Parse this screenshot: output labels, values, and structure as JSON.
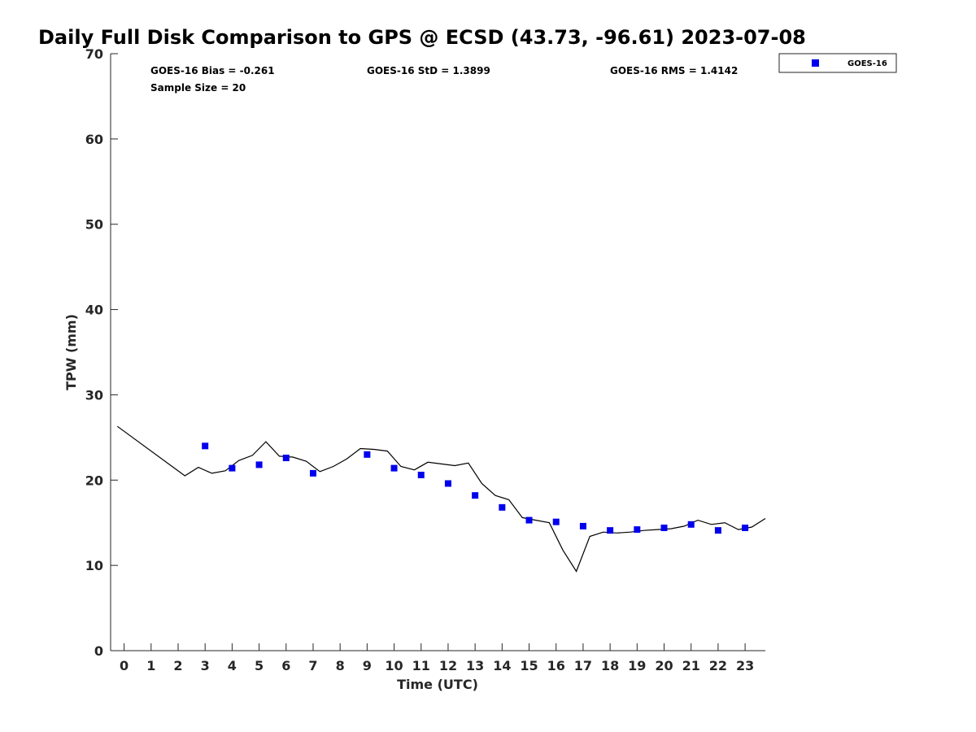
{
  "chart_data": {
    "type": "scatter",
    "title": "Daily Full Disk Comparison to GPS @ ECSD (43.73, -96.61) 2023-07-08",
    "xlabel": "Time (UTC)",
    "ylabel": "TPW (mm)",
    "xlim": [
      -0.5,
      23.75
    ],
    "ylim": [
      0,
      70
    ],
    "x_ticks": [
      0,
      1,
      2,
      3,
      4,
      5,
      6,
      7,
      8,
      9,
      10,
      11,
      12,
      13,
      14,
      15,
      16,
      17,
      18,
      19,
      20,
      21,
      22,
      23
    ],
    "y_ticks": [
      0,
      10,
      20,
      30,
      40,
      50,
      60,
      70
    ],
    "grid": false,
    "legend_position": "outside-top-right",
    "stats": {
      "bias": "GOES-16 Bias = -0.261",
      "std": "GOES-16 StD = 1.3899",
      "rms": "GOES-16 RMS = 1.4142",
      "sample_size": "Sample Size = 20"
    },
    "series": [
      {
        "name": "GOES-16",
        "kind": "scatter",
        "marker": "square",
        "color": "#0000ee",
        "x": [
          3,
          4,
          5,
          6,
          7,
          9,
          10,
          11,
          12,
          13,
          14,
          15,
          16,
          17,
          18,
          19,
          20,
          21,
          22,
          23
        ],
        "y": [
          24.0,
          21.4,
          21.8,
          22.6,
          20.8,
          23.0,
          21.4,
          20.6,
          19.6,
          18.2,
          16.8,
          15.3,
          15.1,
          14.6,
          14.1,
          14.2,
          14.4,
          14.8,
          14.1,
          14.4
        ]
      },
      {
        "kind": "line",
        "color": "#000000",
        "x": [
          -0.25,
          2.25,
          2.75,
          3.25,
          3.75,
          4.25,
          4.75,
          5.25,
          5.75,
          6.25,
          6.75,
          7.25,
          7.75,
          8.25,
          8.75,
          9.25,
          9.75,
          10.25,
          10.75,
          11.25,
          11.75,
          12.25,
          12.75,
          13.25,
          13.75,
          14.25,
          14.75,
          15.25,
          15.75,
          16.25,
          16.75,
          17.25,
          17.75,
          18.25,
          18.75,
          19.25,
          19.75,
          20.25,
          20.75,
          21.25,
          21.75,
          22.25,
          22.75,
          23.25,
          23.75
        ],
        "y": [
          26.3,
          20.5,
          21.5,
          20.8,
          21.1,
          22.3,
          22.9,
          24.5,
          22.8,
          22.7,
          22.2,
          21.0,
          21.6,
          22.5,
          23.7,
          23.6,
          23.4,
          21.6,
          21.2,
          22.1,
          21.9,
          21.7,
          22.0,
          19.6,
          18.2,
          17.7,
          15.6,
          15.3,
          15.0,
          11.8,
          9.3,
          13.4,
          13.9,
          13.8,
          13.9,
          14.1,
          14.2,
          14.3,
          14.6,
          15.3,
          14.8,
          15.0,
          14.2,
          14.5,
          15.5
        ]
      }
    ]
  }
}
